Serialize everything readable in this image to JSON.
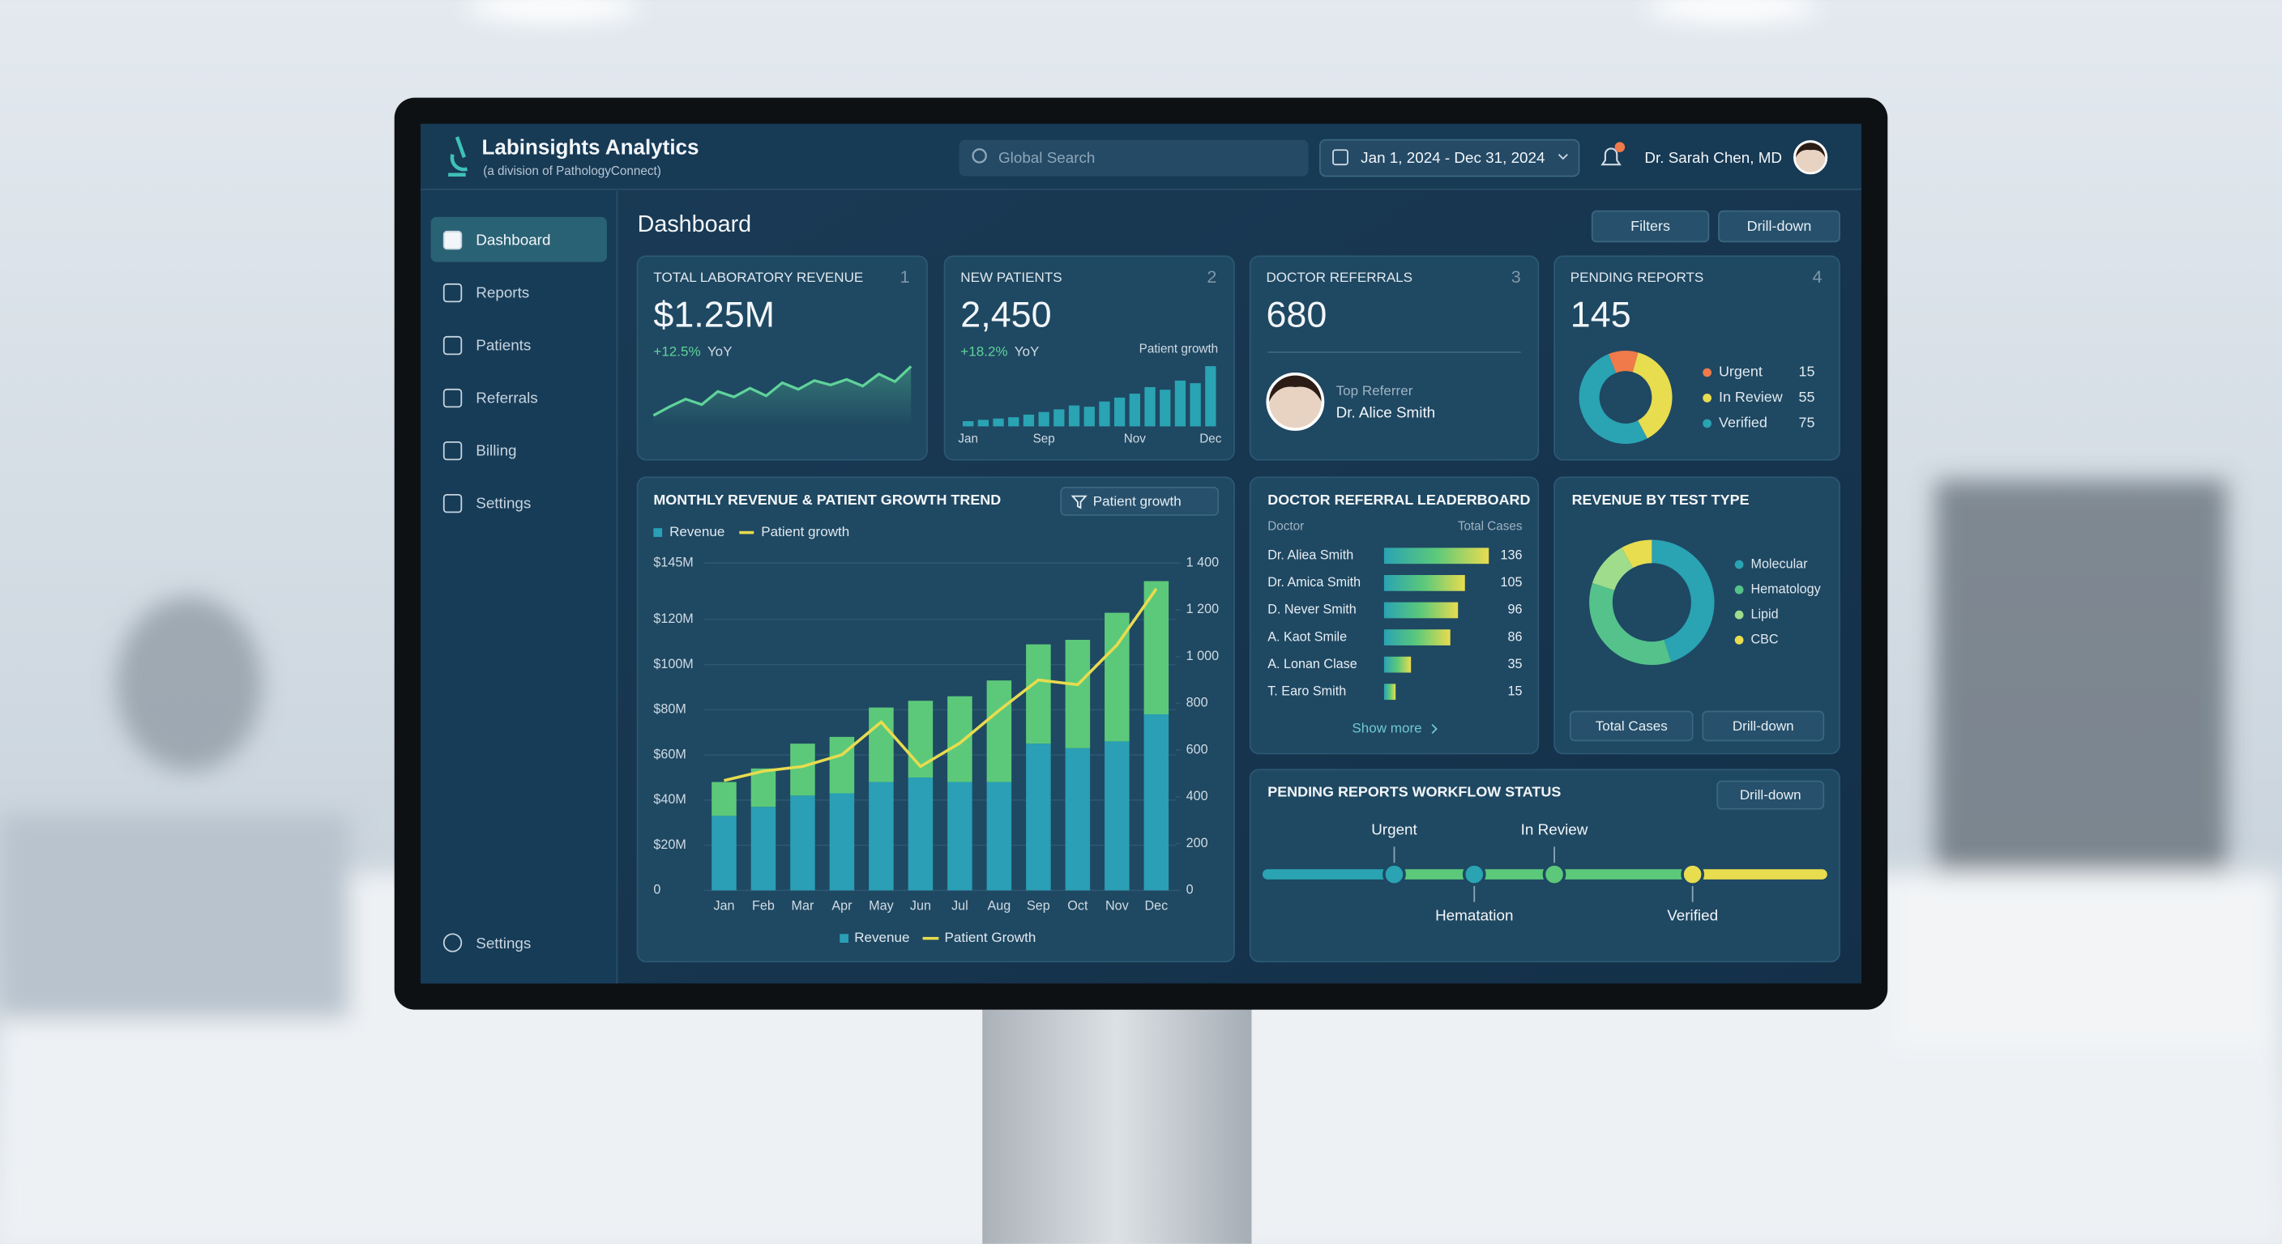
{
  "app": {
    "title": "Labinsights Analytics",
    "subtitle": "(a division of PathologyConnect)",
    "search": "Global Search",
    "date_range": "Jan 1, 2024 - Dec 31, 2024",
    "user": "Dr. Sarah Chen, MD"
  },
  "nav": {
    "items": [
      "Dashboard",
      "Reports",
      "Patients",
      "Referrals",
      "Billing",
      "Settings"
    ],
    "active": 0,
    "footer": "Settings"
  },
  "page": {
    "title": "Dashboard",
    "filters": "Filters",
    "drilldown": "Drill-down"
  },
  "kpis": [
    {
      "title": "TOTAL LABORATORY REVENUE",
      "index": 1,
      "value": "$1.25M",
      "change": "+12.5%",
      "change_label": "YoY",
      "sparkline": {
        "values": [
          10,
          18,
          25,
          20,
          32,
          27,
          35,
          28,
          40,
          34,
          42,
          38,
          43,
          37,
          48,
          41,
          55
        ],
        "ylim": [
          0,
          60
        ],
        "color": "#5fd39a"
      }
    },
    {
      "title": "NEW PATIENTS",
      "index": 2,
      "value": "2,450",
      "change": "+18.2%",
      "change_label": "YoY",
      "chart": {
        "label": "Patient growth",
        "categories": [
          "Jan",
          null,
          null,
          null,
          null,
          "Sep",
          null,
          null,
          null,
          null,
          null,
          "Nov",
          null,
          null,
          null,
          null,
          "Dec"
        ],
        "values": [
          4,
          5,
          6,
          7,
          9,
          11,
          13,
          16,
          15,
          19,
          22,
          25,
          30,
          28,
          35,
          33,
          46
        ],
        "ylim": [
          0,
          50
        ],
        "color": "#2aa3b3"
      }
    },
    {
      "title": "DOCTOR REFERRALS",
      "index": 3,
      "value": 680,
      "referrer_label": "Top Referrer",
      "referrer": "Dr. Alice Smith"
    },
    {
      "title": "PENDING REPORTS",
      "index": 4,
      "value": 145,
      "breakdown": [
        {
          "name": "Urgent",
          "value": 15,
          "color": "#f07a4a"
        },
        {
          "name": "In Review",
          "value": 55,
          "color": "#e8dc4f"
        },
        {
          "name": "Verified",
          "value": 75,
          "color": "#2aa3b3"
        }
      ]
    }
  ],
  "revenue_trend": {
    "title": "MONTHLY REVENUE & PATIENT GROWTH TREND",
    "filter": "Patient growth",
    "categories": [
      "Jan",
      "Feb",
      "Mar",
      "Apr",
      "May",
      "Jun",
      "Jul",
      "Aug",
      "Sep",
      "Oct",
      "Nov",
      "Dec"
    ],
    "series": [
      {
        "name": "Revenue",
        "color": "#2a9fb5",
        "values": [
          33,
          37,
          42,
          43,
          48,
          50,
          48,
          48,
          65,
          63,
          66,
          78
        ]
      },
      {
        "color": "#5cc97a",
        "values": [
          15,
          17,
          23,
          25,
          33,
          34,
          38,
          45,
          44,
          48,
          57,
          59
        ]
      },
      {
        "name": "Patient growth",
        "color": "#e8dc4f",
        "axis": "y2",
        "values": [
          470,
          510,
          530,
          580,
          720,
          530,
          630,
          770,
          900,
          880,
          1050,
          1290
        ]
      }
    ],
    "ylim": [
      0,
      145
    ],
    "yticks": [
      0,
      {
        "value": 20,
        "label": "$20M"
      },
      {
        "value": 40,
        "label": "$40M"
      },
      {
        "value": 60,
        "label": "$60M"
      },
      {
        "value": 80,
        "label": "$80M"
      },
      {
        "value": 100,
        "label": "$100M"
      },
      {
        "value": 120,
        "label": "$120M"
      },
      {
        "value": 145,
        "label": "$145M"
      }
    ],
    "y2lim": [
      0,
      1400
    ],
    "y2ticks": [
      0,
      200,
      400,
      600,
      800,
      {
        "value": 1000,
        "label": "1 000"
      },
      {
        "value": 1200,
        "label": "1 200"
      },
      {
        "value": 1400,
        "label": "1 400"
      }
    ],
    "grid": true,
    "footer_legend": "Patient Growth"
  },
  "leaderboard": {
    "title": "DOCTOR REFERRAL LEADERBOARD",
    "headers": [
      "Doctor",
      "Total Cases"
    ],
    "rows": [
      {
        "name": "Dr. Aliea Smith",
        "value": 136
      },
      {
        "name": "Dr. Amica Smith",
        "value": 105
      },
      {
        "name": "D. Never Smith",
        "value": 96
      },
      {
        "name": "A. Kaot Smile",
        "value": 86
      },
      {
        "name": "A. Lonan Clase",
        "value": 35
      },
      {
        "name": "T. Earo Smith",
        "value": 15
      }
    ],
    "xlim": [
      0,
      140
    ],
    "more": "Show more"
  },
  "test_types": {
    "title": "REVENUE BY TEST TYPE",
    "slices": [
      {
        "name": "Molecular",
        "value": 45,
        "color": "#2aa3b3"
      },
      {
        "name": "Hematology",
        "value": 35,
        "color": "#54c28a"
      },
      {
        "name": "Lipid",
        "value": 12,
        "color": "#9fdc8c"
      },
      {
        "name": "CBC",
        "value": 8,
        "color": "#e8dc4f"
      }
    ],
    "button": "Total Cases"
  },
  "workflow": {
    "title": "PENDING REPORTS WORKFLOW STATUS",
    "stages": [
      "Urgent",
      "Hematation",
      "In Review",
      "Verified"
    ]
  }
}
